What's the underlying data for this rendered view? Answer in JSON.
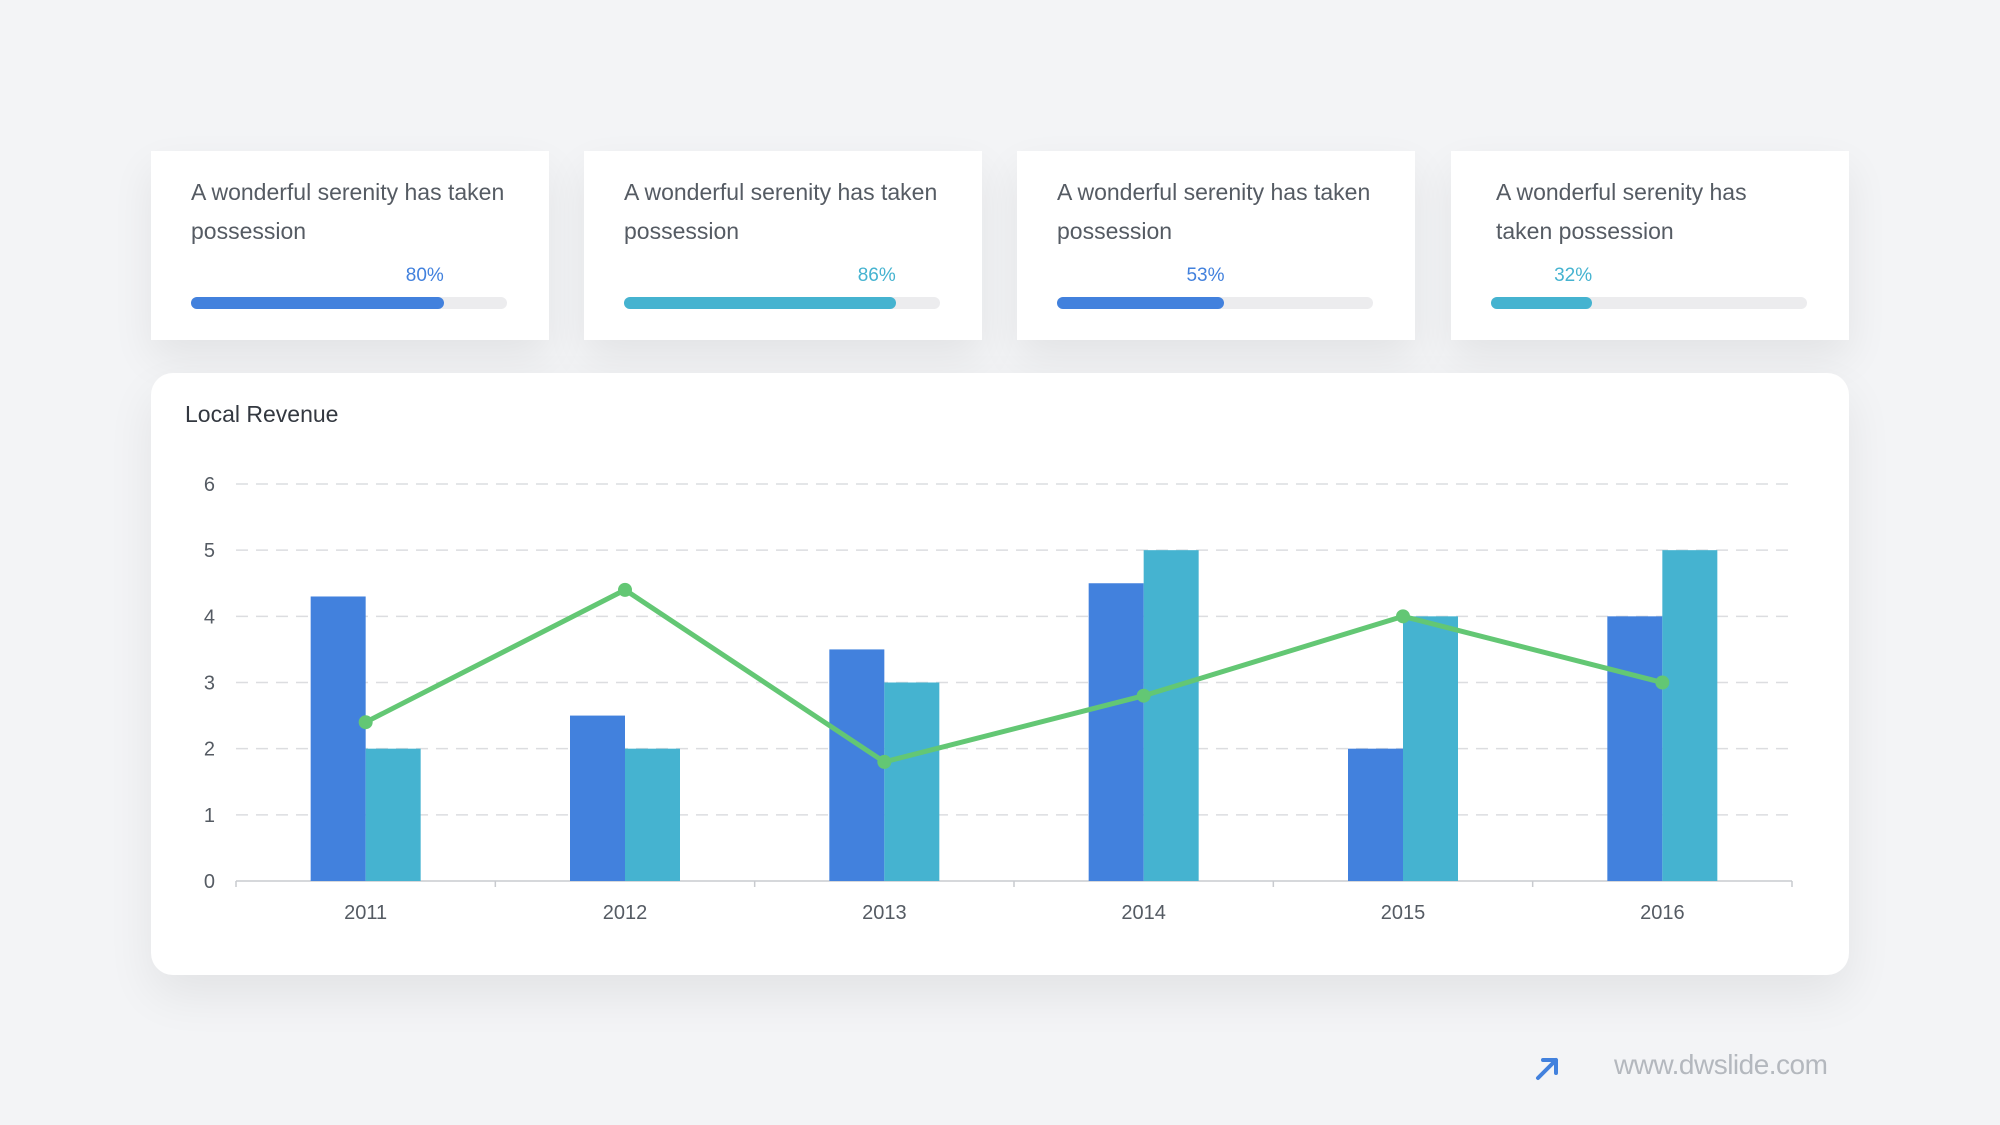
{
  "cards": [
    {
      "text": "A wonderful serenity has taken possession",
      "percent_label": "80%",
      "percent": 80,
      "color": "#4281dd"
    },
    {
      "text": "A wonderful serenity has taken possession",
      "percent_label": "86%",
      "percent": 86,
      "color": "#45b3d0"
    },
    {
      "text": "A wonderful serenity has taken possession",
      "percent_label": "53%",
      "percent": 53,
      "color": "#4281dd"
    },
    {
      "text": "A wonderful serenity has taken possession",
      "percent_label": "32%",
      "percent": 32,
      "color": "#45b3d0"
    }
  ],
  "chart_data": {
    "type": "bar",
    "title": "Local Revenue",
    "categories": [
      "2011",
      "2012",
      "2013",
      "2014",
      "2015",
      "2016"
    ],
    "series": [
      {
        "type": "bar",
        "color": "#4281dd",
        "values": [
          4.3,
          2.5,
          3.5,
          4.5,
          2.0,
          4.0
        ]
      },
      {
        "type": "bar",
        "color": "#45b3d0",
        "values": [
          2.0,
          2.0,
          3.0,
          5.0,
          4.0,
          5.0
        ]
      },
      {
        "type": "line",
        "color": "#63c774",
        "values": [
          2.4,
          4.4,
          1.8,
          2.8,
          4.0,
          3.0
        ]
      }
    ],
    "ylim": [
      0,
      6
    ],
    "yticks": [
      0,
      1,
      2,
      3,
      4,
      5,
      6
    ],
    "grid": true,
    "legend": "none"
  },
  "footer": {
    "url": "www.dwslide.com",
    "icon": "arrow-up-right-icon",
    "icon_color": "#4281dd"
  }
}
